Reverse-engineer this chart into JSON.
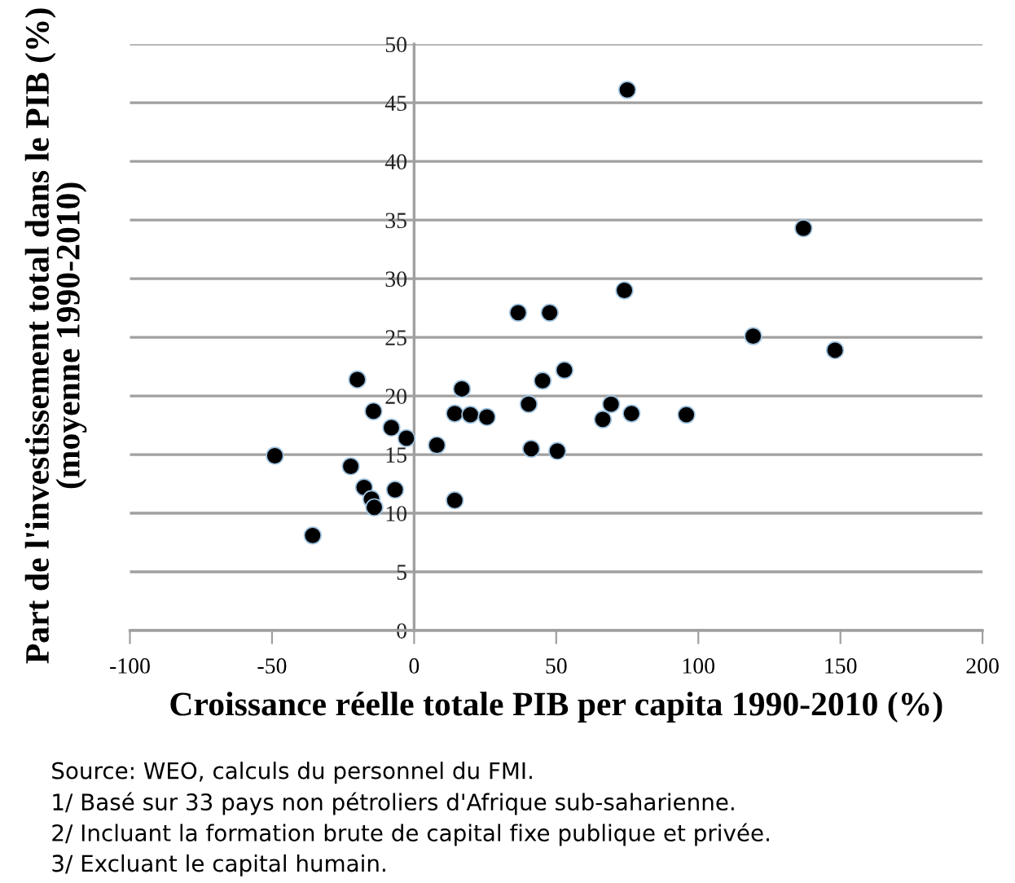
{
  "chart_data": {
    "type": "scatter",
    "xlabel": "Croissance réelle totale PIB per capita 1990-2010 (%)",
    "ylabel": "Part de l'investissement total dans le PIB (%)\n(moyenne 1990-2010)",
    "x": [
      -49,
      -35.7,
      -22.3,
      -20,
      -17.6,
      -14.3,
      -15,
      -14,
      -8,
      -6.7,
      -2.7,
      8,
      14.3,
      14.3,
      16.8,
      19.8,
      25.6,
      36.6,
      40.3,
      41.2,
      45.2,
      47.7,
      50.4,
      52.9,
      66.4,
      69.3,
      76.5,
      95.8,
      119.3,
      148.1,
      75,
      74,
      137
    ],
    "values": [
      14.9,
      8.1,
      14.0,
      21.4,
      12.2,
      18.7,
      11.2,
      10.5,
      17.3,
      12.0,
      16.4,
      15.8,
      18.5,
      11.1,
      20.6,
      18.4,
      18.2,
      27.1,
      19.3,
      15.5,
      21.3,
      27.1,
      15.3,
      22.2,
      18.0,
      19.3,
      18.5,
      18.4,
      25.1,
      23.9,
      46.1,
      29.0,
      34.3
    ],
    "color": "#000000",
    "marker": "circle",
    "xlim": [
      -100,
      200
    ],
    "xticks": [
      -100,
      -50,
      0,
      50,
      100,
      150,
      200
    ],
    "ylim": [
      0,
      50
    ],
    "yticks": [
      0,
      5,
      10,
      15,
      20,
      25,
      30,
      35,
      40,
      45,
      50
    ],
    "grid": "y",
    "legend": false,
    "annotations": [
      "Source: WEO, calculs du personnel du FMI.",
      "1/ Basé sur 33 pays non pétroliers d'Afrique sub-saharienne.",
      "2/ Incluant la formation brute de capital fixe publique et privée.",
      "3/ Excluant le capital humain."
    ]
  }
}
